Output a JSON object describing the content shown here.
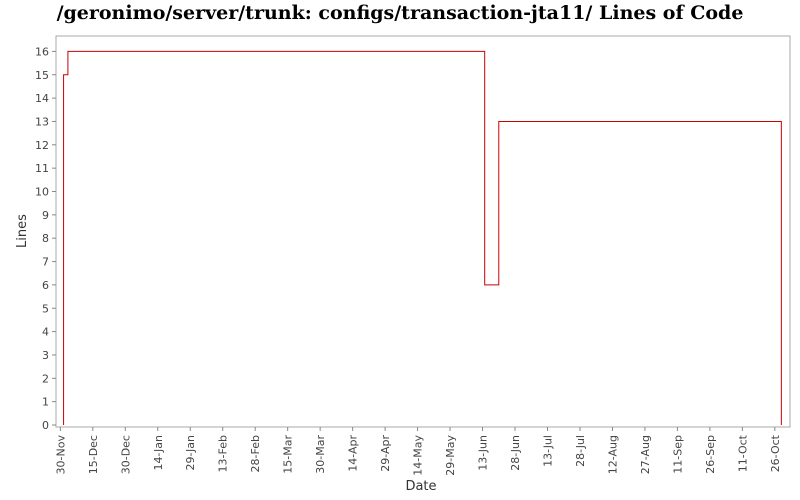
{
  "chart_data": {
    "type": "line",
    "title": "/geronimo/server/trunk: configs/transaction-jta11/ Lines of Code",
    "xlabel": "Date",
    "ylabel": "Lines",
    "ylim": [
      0,
      16.5
    ],
    "yticks": [
      "0",
      "1",
      "2",
      "3",
      "4",
      "5",
      "6",
      "7",
      "8",
      "9",
      "10",
      "11",
      "12",
      "13",
      "14",
      "15",
      "16"
    ],
    "xticks": [
      "30-Nov",
      "15-Dec",
      "30-Dec",
      "14-Jan",
      "29-Jan",
      "13-Feb",
      "28-Feb",
      "15-Mar",
      "30-Mar",
      "14-Apr",
      "29-Apr",
      "14-May",
      "29-May",
      "13-Jun",
      "28-Jun",
      "13-Jul",
      "28-Jul",
      "12-Aug",
      "27-Aug",
      "11-Sep",
      "26-Sep",
      "11-Oct",
      "26-Oct"
    ],
    "x_range_days": [
      -2,
      337
    ],
    "grid": false,
    "legend": "none",
    "line_color": "#cc0000",
    "series": [
      {
        "step": true,
        "points": [
          {
            "day": 1.5,
            "y": 0
          },
          {
            "day": 1.5,
            "y": 15
          },
          {
            "day": 3.5,
            "y": 16
          },
          {
            "day": 196,
            "y": 6
          },
          {
            "day": 202.5,
            "y": 13
          },
          {
            "day": 333,
            "y": 0
          }
        ]
      }
    ]
  }
}
